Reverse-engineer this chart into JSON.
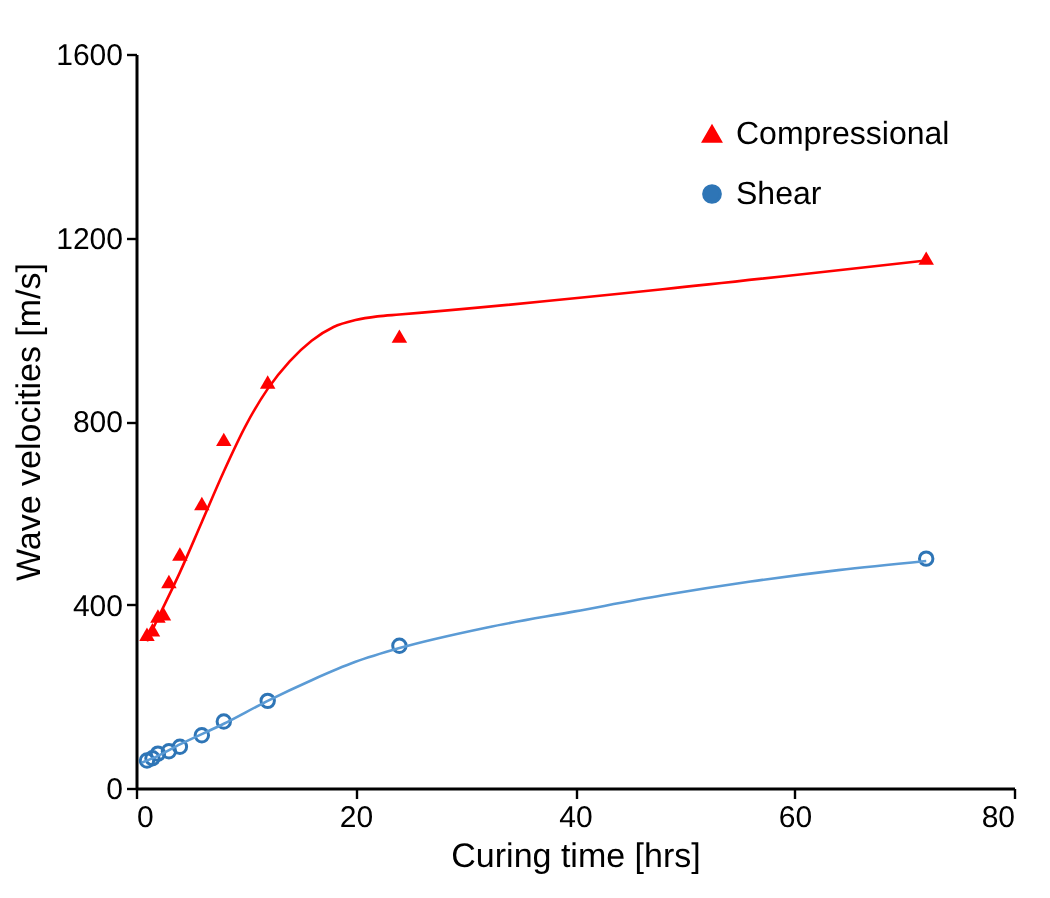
{
  "chart_data": {
    "type": "scatter",
    "xlabel": "Curing time [hrs]",
    "ylabel": "Wave velocities [m/s]",
    "xlim": [
      0,
      80
    ],
    "ylim": [
      0,
      1600
    ],
    "xticks": [
      0,
      20,
      40,
      60,
      80
    ],
    "yticks": [
      0,
      400,
      800,
      1200,
      1600
    ],
    "grid": false,
    "legend": "top right",
    "series": [
      {
        "name": "Compressional",
        "color": "#ff0000",
        "marker": "triangle",
        "x": [
          1,
          1.5,
          2,
          2.5,
          3,
          4,
          6,
          8,
          12,
          24,
          72
        ],
        "values": [
          335,
          345,
          375,
          380,
          450,
          510,
          620,
          760,
          885,
          985,
          1155
        ]
      },
      {
        "name": "Shear",
        "color": "#2e75b6",
        "marker": "circle",
        "x": [
          1,
          1.5,
          2,
          3,
          4,
          6,
          8,
          12,
          24,
          72
        ],
        "values": [
          60,
          65,
          75,
          80,
          90,
          115,
          145,
          190,
          310,
          500
        ]
      },
      {
        "type": "line",
        "color": "#ff0000",
        "marker": "none",
        "x": [
          1,
          2,
          4,
          6,
          8,
          10,
          12,
          14,
          16,
          18,
          20,
          22,
          24,
          72
        ],
        "values": [
          320,
          370,
          470,
          580,
          690,
          790,
          870,
          930,
          975,
          1005,
          1020,
          1028,
          1032,
          1150
        ]
      },
      {
        "type": "line",
        "color": "#5b9bd5",
        "marker": "none",
        "x": [
          0.5,
          2,
          4,
          8,
          12,
          16,
          20,
          24,
          32,
          40,
          48,
          56,
          64,
          72
        ],
        "values": [
          55,
          70,
          95,
          140,
          190,
          235,
          275,
          305,
          350,
          385,
          420,
          450,
          475,
          495
        ]
      }
    ]
  }
}
